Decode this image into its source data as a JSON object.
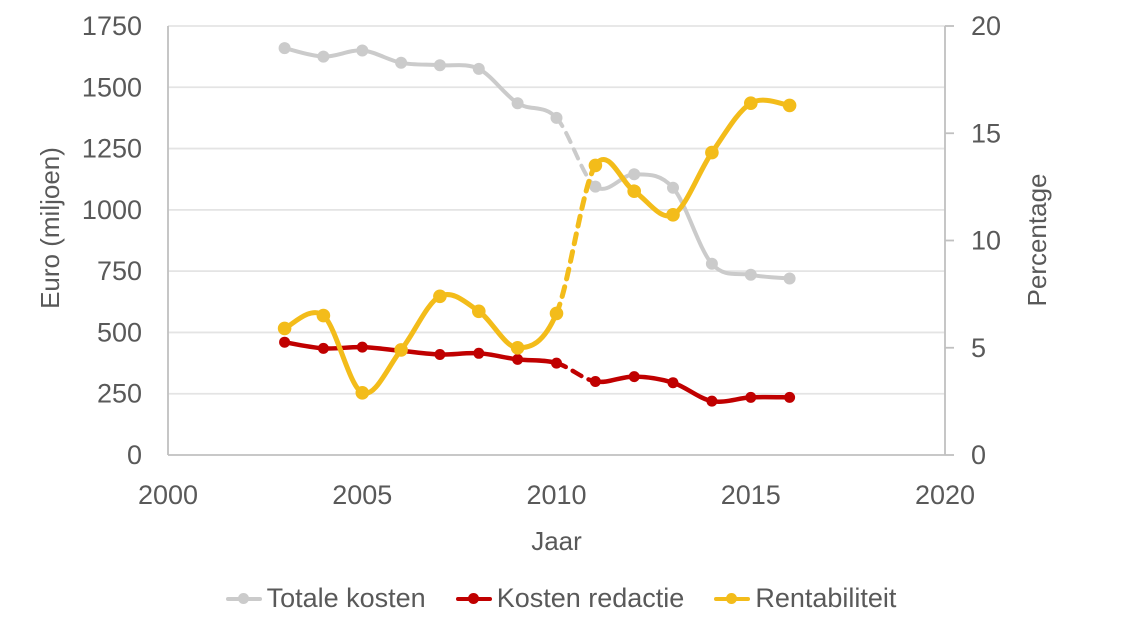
{
  "chart_data": {
    "type": "line",
    "title": "",
    "xlabel": "Jaar",
    "x": [
      2003,
      2004,
      2005,
      2006,
      2007,
      2008,
      2009,
      2010,
      2011,
      2012,
      2013,
      2014,
      2015,
      2016
    ],
    "x_axis": {
      "min": 2000,
      "max": 2020,
      "ticks": [
        2000,
        2005,
        2010,
        2015,
        2020
      ]
    },
    "left_axis": {
      "label": "Euro (miljoen)",
      "min": 0,
      "max": 1750,
      "ticks": [
        0,
        250,
        500,
        750,
        1000,
        1250,
        1500,
        1750
      ]
    },
    "right_axis": {
      "label": "Percentage",
      "min": 0,
      "max": 20,
      "ticks": [
        0,
        5,
        10,
        15,
        20
      ]
    },
    "grid": "horizontal",
    "legend_position": "bottom",
    "dashed_between_x": [
      2010,
      2011
    ],
    "series": [
      {
        "name": "Totale kosten",
        "axis": "left",
        "color": "#CBCBCB",
        "line_style": "smooth",
        "values": [
          1660,
          1625,
          1650,
          1600,
          1590,
          1575,
          1435,
          1375,
          1095,
          1145,
          1090,
          780,
          735,
          720
        ]
      },
      {
        "name": "Kosten redactie",
        "axis": "left",
        "color": "#C00000",
        "line_style": "smooth",
        "values": [
          460,
          435,
          440,
          425,
          410,
          415,
          390,
          375,
          300,
          320,
          295,
          220,
          235,
          235
        ]
      },
      {
        "name": "Rentabiliteit",
        "axis": "right",
        "color": "#F3BC1A",
        "line_style": "smooth",
        "values": [
          5.9,
          6.5,
          2.9,
          4.9,
          7.4,
          6.7,
          5.0,
          6.6,
          13.5,
          12.3,
          11.2,
          14.1,
          16.4,
          16.3
        ]
      }
    ]
  },
  "styles": {
    "background": "#FFFFFF",
    "text_color": "#595959",
    "grid_color": "#E4E4E4",
    "axis_color": "#C0C0C0"
  }
}
